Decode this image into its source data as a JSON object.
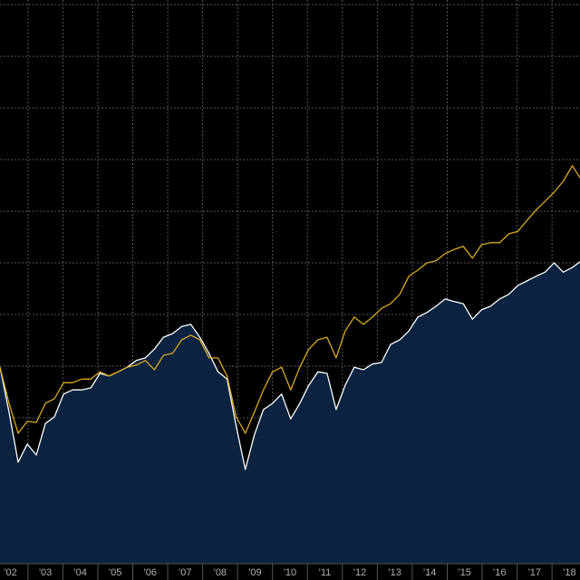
{
  "chart_data": {
    "type": "line",
    "x": [
      2002.2,
      2002.46,
      2002.72,
      2002.98,
      2003.24,
      2003.5,
      2003.76,
      2004.02,
      2004.28,
      2004.54,
      2004.8,
      2005.06,
      2005.32,
      2005.58,
      2005.84,
      2006.1,
      2006.36,
      2006.62,
      2006.88,
      2007.14,
      2007.4,
      2007.66,
      2007.92,
      2008.18,
      2008.44,
      2008.7,
      2008.96,
      2009.22,
      2009.48,
      2009.74,
      2010.0,
      2010.26,
      2010.52,
      2010.78,
      2011.04,
      2011.3,
      2011.56,
      2011.82,
      2012.08,
      2012.34,
      2012.6,
      2012.86,
      2013.12,
      2013.38,
      2013.64,
      2013.9,
      2014.16,
      2014.42,
      2014.68,
      2014.94,
      2015.2,
      2015.46,
      2015.72,
      2015.98,
      2016.24,
      2016.5,
      2016.76,
      2017.02,
      2017.28,
      2017.54,
      2017.8,
      2018.06,
      2018.32,
      2018.58,
      2018.84
    ],
    "series": [
      {
        "color": "#ffffff",
        "fill": "#0b2340",
        "area": true,
        "values": [
          39.8,
          31.1,
          21.4,
          24.9,
          22.8,
          28.9,
          30.2,
          34.6,
          35.4,
          35.4,
          35.8,
          38.6,
          38.1,
          38.9,
          39.8,
          41.1,
          41.6,
          43.3,
          45.6,
          46.3,
          47.7,
          48.1,
          45.6,
          42.5,
          38.9,
          37.5,
          28.4,
          20.0,
          26.7,
          31.6,
          32.8,
          34.6,
          29.8,
          32.8,
          36.3,
          38.9,
          38.6,
          31.6,
          36.3,
          39.8,
          39.3,
          40.4,
          40.7,
          44.2,
          45.1,
          46.8,
          49.5,
          50.4,
          51.6,
          53.0,
          52.5,
          52.1,
          49.1,
          50.9,
          51.6,
          53.0,
          53.9,
          55.6,
          56.5,
          57.4,
          58.2,
          60.0,
          58.2,
          59.1,
          60.4
        ]
      },
      {
        "color": "#d9a920",
        "values": [
          39.8,
          32.8,
          27.0,
          29.3,
          29.1,
          32.8,
          33.7,
          36.8,
          36.8,
          37.5,
          37.5,
          38.9,
          38.1,
          38.9,
          39.8,
          40.2,
          41.1,
          39.3,
          42.1,
          42.5,
          45.1,
          46.0,
          45.1,
          41.6,
          41.6,
          38.1,
          30.2,
          27.0,
          31.1,
          35.4,
          38.9,
          39.8,
          35.4,
          39.8,
          43.3,
          45.1,
          45.6,
          41.6,
          46.8,
          49.5,
          48.1,
          49.5,
          51.2,
          52.1,
          53.9,
          57.4,
          58.6,
          60.0,
          60.4,
          61.8,
          62.6,
          63.2,
          60.9,
          63.5,
          63.9,
          63.9,
          65.6,
          66.1,
          68.2,
          70.2,
          71.9,
          73.7,
          75.8,
          78.8,
          76.1
        ]
      }
    ],
    "xlim": [
      2002.2,
      2018.8
    ],
    "xticks": [
      {
        "value": 2002.5,
        "label": "'02"
      },
      {
        "value": 2003.5,
        "label": "'03"
      },
      {
        "value": 2004.5,
        "label": "'04"
      },
      {
        "value": 2005.5,
        "label": "'05"
      },
      {
        "value": 2006.5,
        "label": "'06"
      },
      {
        "value": 2007.5,
        "label": "'07"
      },
      {
        "value": 2008.5,
        "label": "'08"
      },
      {
        "value": 2009.5,
        "label": "'09"
      },
      {
        "value": 2010.5,
        "label": "'10"
      },
      {
        "value": 2011.5,
        "label": "'11"
      },
      {
        "value": 2012.5,
        "label": "'12"
      },
      {
        "value": 2013.5,
        "label": "'13"
      },
      {
        "value": 2014.5,
        "label": "'14"
      },
      {
        "value": 2015.5,
        "label": "'15"
      },
      {
        "value": 2016.5,
        "label": "'16"
      },
      {
        "value": 2017.5,
        "label": "'17"
      },
      {
        "value": 2018.5,
        "label": "'18"
      }
    ],
    "xgrid": [
      2003,
      2004,
      2005,
      2006,
      2007,
      2008,
      2009,
      2010,
      2011,
      2012,
      2013,
      2014,
      2015,
      2016,
      2017,
      2018
    ],
    "ylim": [
      1.75,
      110.9
    ],
    "yticks": [
      10,
      20,
      30,
      40,
      50,
      60,
      70,
      80,
      90,
      100,
      110
    ],
    "grid": true
  }
}
